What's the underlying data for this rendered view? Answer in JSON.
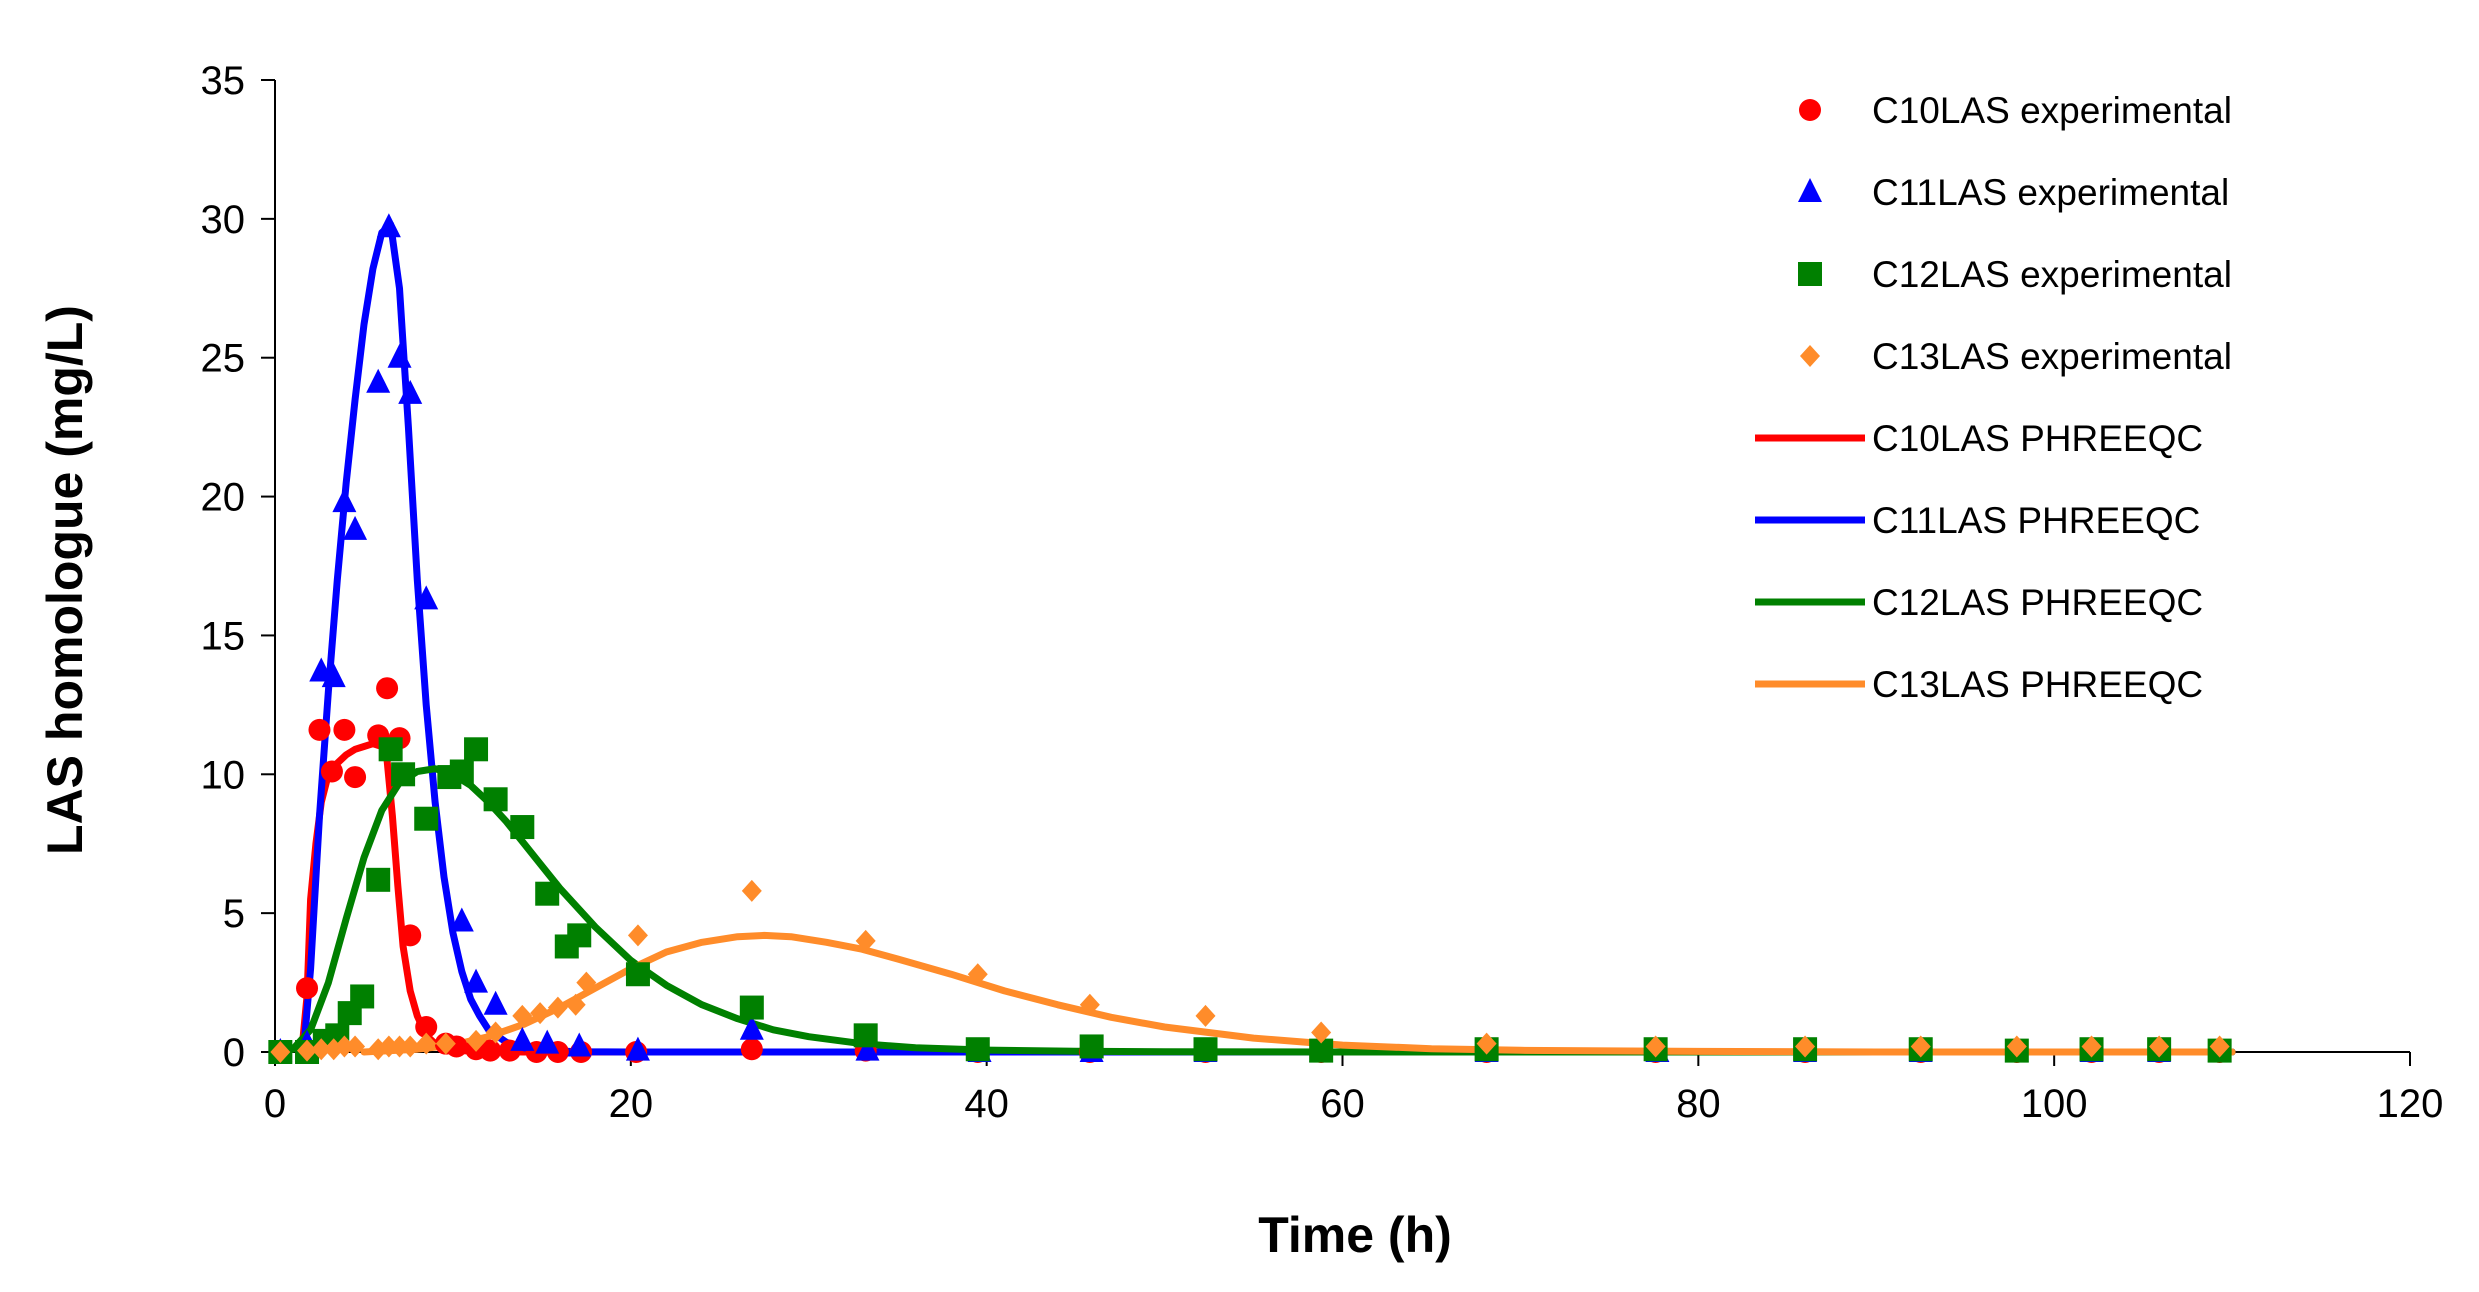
{
  "chart_data": {
    "type": "scatter",
    "xlabel": "Time (h)",
    "ylabel": "LAS homologue (mg/L)",
    "xlim": [
      0,
      120
    ],
    "ylim": [
      0,
      35
    ],
    "xticks": [
      0,
      20,
      40,
      60,
      80,
      100,
      120
    ],
    "yticks": [
      0,
      5,
      10,
      15,
      20,
      25,
      30,
      35
    ],
    "grid": false,
    "legend_position": "top-right",
    "series": [
      {
        "name": "C10LAS experimental",
        "kind": "scatter",
        "marker": "circle",
        "color": "#ff0000",
        "x": [
          0.3,
          1.8,
          2.5,
          3.2,
          3.9,
          4.5,
          5.8,
          6.3,
          7.0,
          7.6,
          8.5,
          9.6,
          10.2,
          11.3,
          12.1,
          13.2,
          14.7,
          15.9,
          17.2,
          20.3,
          26.8,
          33.2,
          39.5,
          45.8,
          52.3,
          58.8,
          68.1,
          77.6,
          86.0,
          92.5,
          97.9,
          102.1,
          105.9,
          109.3
        ],
        "y": [
          0.0,
          2.3,
          11.6,
          10.1,
          11.6,
          9.9,
          11.4,
          13.1,
          11.3,
          4.2,
          0.9,
          0.3,
          0.2,
          0.1,
          0.05,
          0.05,
          0.0,
          0.0,
          0.0,
          0.0,
          0.1,
          0.05,
          0.0,
          0.0,
          0.0,
          0.0,
          0.0,
          0.0,
          0.0,
          0.0,
          0.0,
          0.0,
          0.0,
          0.0
        ]
      },
      {
        "name": "C11LAS experimental",
        "kind": "scatter",
        "marker": "triangle",
        "color": "#0000ff",
        "x": [
          0.3,
          1.8,
          2.6,
          3.3,
          3.9,
          4.5,
          5.8,
          6.4,
          7.0,
          7.6,
          8.5,
          10.5,
          11.3,
          12.4,
          13.9,
          15.3,
          17.1,
          20.4,
          26.8,
          33.3,
          39.6,
          45.9,
          52.3,
          58.8,
          68.1,
          77.7,
          86.0,
          92.5,
          97.9,
          102.1,
          105.9,
          109.3
        ],
        "y": [
          0.0,
          0.3,
          13.7,
          13.5,
          19.8,
          18.8,
          24.1,
          29.7,
          25.0,
          23.7,
          16.3,
          4.7,
          2.5,
          1.7,
          0.4,
          0.3,
          0.2,
          0.05,
          0.8,
          0.05,
          0.0,
          0.0,
          0.0,
          0.0,
          0.0,
          0.0,
          0.0,
          0.0,
          0.0,
          0.0,
          0.0,
          0.0
        ]
      },
      {
        "name": "C12LAS experimental",
        "kind": "scatter",
        "marker": "square",
        "color": "#008000",
        "x": [
          0.3,
          1.8,
          2.8,
          3.5,
          4.2,
          4.9,
          5.8,
          6.5,
          7.2,
          8.5,
          9.8,
          10.5,
          11.3,
          12.4,
          13.9,
          15.3,
          16.4,
          17.1,
          20.4,
          26.8,
          33.2,
          39.5,
          45.9,
          52.3,
          58.8,
          68.1,
          77.6,
          86.0,
          92.5,
          97.9,
          102.1,
          105.9,
          109.3
        ],
        "y": [
          0.0,
          0.0,
          0.4,
          0.6,
          1.4,
          2.0,
          6.2,
          10.9,
          10.0,
          8.4,
          9.9,
          10.1,
          10.9,
          9.1,
          8.1,
          5.7,
          3.8,
          4.2,
          2.8,
          1.6,
          0.6,
          0.1,
          0.2,
          0.1,
          0.05,
          0.1,
          0.1,
          0.1,
          0.1,
          0.05,
          0.1,
          0.1,
          0.05
        ]
      },
      {
        "name": "C13LAS experimental",
        "kind": "scatter",
        "marker": "diamond",
        "color": "#ff8c2a",
        "x": [
          0.3,
          1.8,
          2.6,
          3.3,
          3.9,
          4.5,
          5.8,
          6.4,
          7.0,
          7.6,
          8.5,
          9.6,
          11.3,
          12.4,
          13.9,
          14.9,
          15.9,
          16.9,
          17.5,
          20.4,
          26.8,
          33.2,
          39.5,
          45.8,
          52.3,
          58.8,
          68.1,
          77.6,
          86.0,
          92.5,
          97.9,
          102.1,
          105.9,
          109.3
        ],
        "y": [
          0.0,
          0.05,
          0.1,
          0.1,
          0.2,
          0.2,
          0.1,
          0.2,
          0.2,
          0.2,
          0.3,
          0.3,
          0.4,
          0.7,
          1.3,
          1.4,
          1.6,
          1.7,
          2.5,
          4.2,
          5.8,
          4.0,
          2.8,
          1.7,
          1.3,
          0.7,
          0.3,
          0.2,
          0.2,
          0.2,
          0.2,
          0.2,
          0.2,
          0.2
        ]
      },
      {
        "name": "C10LAS PHREEQC",
        "kind": "line",
        "color": "#ff0000",
        "x": [
          1.5,
          1.8,
          2.0,
          2.3,
          2.6,
          3.0,
          3.5,
          4.0,
          4.5,
          5.0,
          5.5,
          6.0,
          6.3,
          6.6,
          6.9,
          7.2,
          7.6,
          8.0,
          8.5,
          9.0,
          9.5,
          10.0,
          11.0,
          12.0,
          14.0,
          16.0,
          20.0,
          30.0,
          50.0,
          80.0,
          110.0
        ],
        "y": [
          0.0,
          2.0,
          5.5,
          7.5,
          9.0,
          10.0,
          10.4,
          10.7,
          10.9,
          11.0,
          11.1,
          11.0,
          10.5,
          8.5,
          6.0,
          3.8,
          2.2,
          1.3,
          0.6,
          0.3,
          0.15,
          0.08,
          0.03,
          0.01,
          0.0,
          0.0,
          0.0,
          0.0,
          0.0,
          0.0,
          0.0
        ]
      },
      {
        "name": "C11LAS PHREEQC",
        "kind": "line",
        "color": "#0000ff",
        "x": [
          1.6,
          2.0,
          2.5,
          3.0,
          3.5,
          4.0,
          4.5,
          5.0,
          5.5,
          6.0,
          6.5,
          7.0,
          7.5,
          8.0,
          8.5,
          9.0,
          9.5,
          10.0,
          10.5,
          11.0,
          11.5,
          12.0,
          13.0,
          14.0,
          15.0,
          17.0,
          20.0,
          30.0,
          50.0,
          80.0,
          110.0
        ],
        "y": [
          0.0,
          3.0,
          8.5,
          13.0,
          17.0,
          20.5,
          23.5,
          26.2,
          28.2,
          29.5,
          29.8,
          27.5,
          22.5,
          17.0,
          12.5,
          9.0,
          6.3,
          4.3,
          2.9,
          1.9,
          1.3,
          0.8,
          0.35,
          0.15,
          0.06,
          0.01,
          0.0,
          0.0,
          0.0,
          0.0,
          0.0
        ]
      },
      {
        "name": "C12LAS PHREEQC",
        "kind": "line",
        "color": "#008000",
        "x": [
          0.5,
          1.0,
          2.0,
          3.0,
          4.0,
          5.0,
          6.0,
          7.0,
          8.0,
          9.0,
          10.0,
          11.0,
          12.0,
          13.0,
          14.0,
          15.0,
          16.0,
          18.0,
          20.0,
          22.0,
          24.0,
          26.0,
          28.0,
          30.0,
          33.0,
          36.0,
          40.0,
          45.0,
          50.0,
          60.0,
          80.0,
          110.0
        ],
        "y": [
          0.0,
          0.1,
          0.8,
          2.5,
          4.8,
          7.0,
          8.7,
          9.7,
          10.1,
          10.2,
          10.0,
          9.6,
          9.0,
          8.3,
          7.5,
          6.7,
          5.9,
          4.5,
          3.3,
          2.4,
          1.7,
          1.2,
          0.8,
          0.55,
          0.3,
          0.15,
          0.07,
          0.03,
          0.01,
          0.0,
          0.0,
          0.0
        ]
      },
      {
        "name": "C13LAS PHREEQC",
        "kind": "line",
        "color": "#ff8c2a",
        "x": [
          5.0,
          8.0,
          10.0,
          12.0,
          14.0,
          16.0,
          18.0,
          20.0,
          22.0,
          24.0,
          26.0,
          27.5,
          29.0,
          31.0,
          33.0,
          35.0,
          38.0,
          41.0,
          44.0,
          47.0,
          50.0,
          55.0,
          60.0,
          65.0,
          70.0,
          80.0,
          90.0,
          100.0,
          110.0
        ],
        "y": [
          0.0,
          0.1,
          0.25,
          0.55,
          1.0,
          1.6,
          2.3,
          3.0,
          3.6,
          3.95,
          4.15,
          4.2,
          4.15,
          3.95,
          3.7,
          3.35,
          2.8,
          2.2,
          1.7,
          1.25,
          0.9,
          0.5,
          0.25,
          0.12,
          0.06,
          0.02,
          0.0,
          0.0,
          0.0
        ]
      }
    ]
  }
}
